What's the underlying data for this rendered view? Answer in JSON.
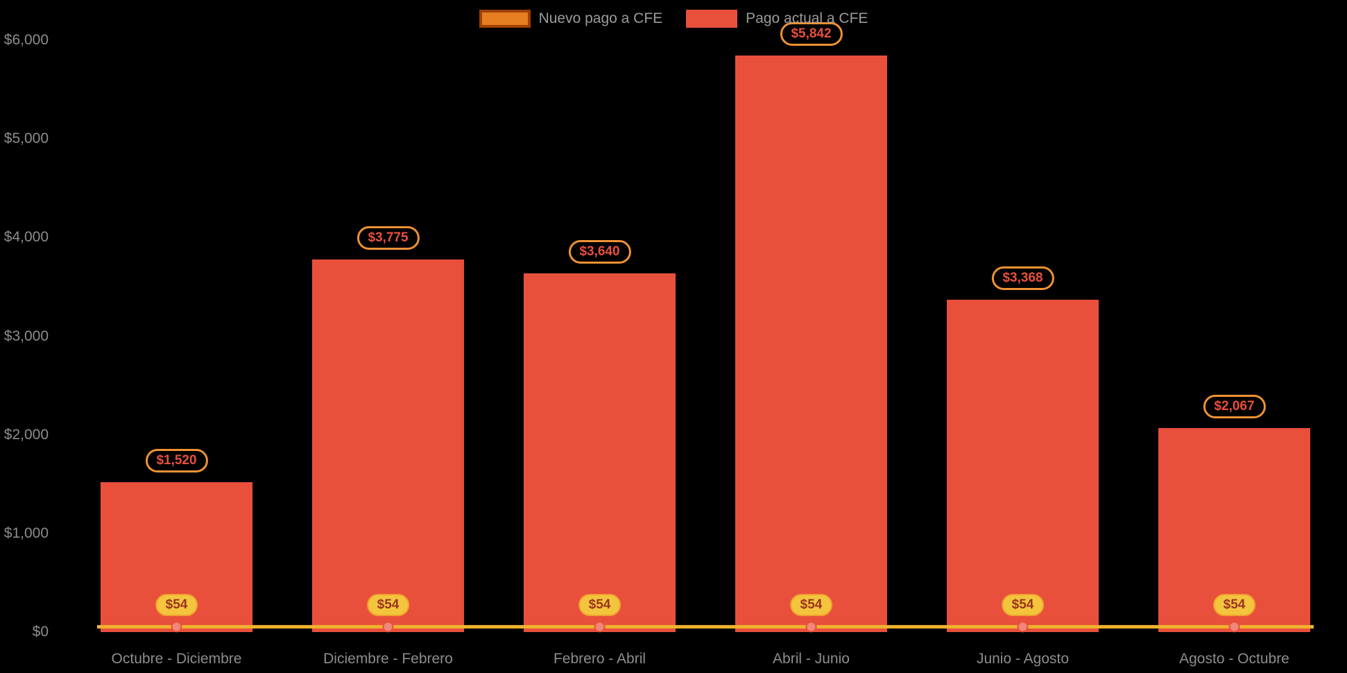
{
  "chart_data": {
    "type": "bar",
    "title": "",
    "categories": [
      "Octubre - Diciembre",
      "Diciembre - Febrero",
      "Febrero - Abril",
      "Abril - Junio",
      "Junio - Agosto",
      "Agosto - Octubre"
    ],
    "series": [
      {
        "name": "Nuevo pago a CFE",
        "kind": "line",
        "values": [
          54,
          54,
          54,
          54,
          54,
          54
        ],
        "labels": [
          "$54",
          "$54",
          "$54",
          "$54",
          "$54",
          "$54"
        ],
        "color": "#f0b32e",
        "point_fill": "#f1867a",
        "point_stroke": "#e8503b"
      },
      {
        "name": "Pago actual a CFE",
        "kind": "bar",
        "values": [
          1520,
          3775,
          3640,
          5842,
          3368,
          2067
        ],
        "labels": [
          "$1,520",
          "$3,775",
          "$3,640",
          "$5,842",
          "$3,368",
          "$2,067"
        ],
        "color": "#e8503b"
      }
    ],
    "ylim": [
      0,
      6000
    ],
    "y_ticks": [
      "$0",
      "$1,000",
      "$2,000",
      "$3,000",
      "$4,000",
      "$5,000",
      "$6,000"
    ],
    "y_tick_values": [
      0,
      1000,
      2000,
      3000,
      4000,
      5000,
      6000
    ],
    "xlabel": "",
    "ylabel": "",
    "grid": false,
    "legend_position": "top"
  },
  "legend": {
    "items": [
      {
        "label": "Nuevo pago a CFE",
        "swatch_fill": "#e67e22",
        "swatch_border": "#a04000"
      },
      {
        "label": "Pago actual a CFE",
        "swatch_fill": "#e8503b",
        "swatch_border": "#e8503b"
      }
    ]
  },
  "colors": {
    "background": "#000000",
    "axis_text": "#8d8d8d",
    "legend_text": "#9b9b9b",
    "bar": "#e8503b",
    "line": "#f0b32e",
    "bar_badge_border": "#ef9234",
    "bar_badge_text": "#e8503b",
    "line_badge_fill": "#f3c53d",
    "line_badge_text": "#9c3420"
  }
}
